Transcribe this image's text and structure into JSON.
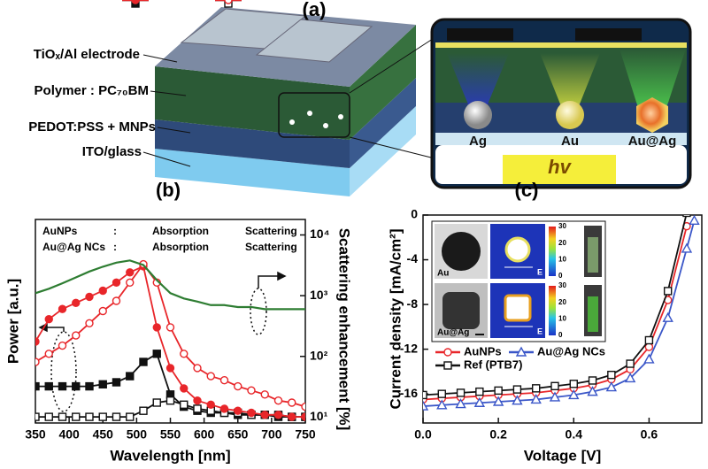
{
  "panel_labels": [
    "(a)",
    "(b)",
    "(c)"
  ],
  "device": {
    "layers": [
      "TiOₓ/Al electrode",
      "Polymer : PC₇₀BM",
      "PEDOT:PSS + MNPs",
      "ITO/glass"
    ],
    "particles": [
      "Ag",
      "Au",
      "Au@Ag"
    ],
    "light": "hv"
  },
  "chart_data": [
    {
      "type": "line",
      "xlabel": "Wavelength [nm]",
      "ylabel": "Power [a.u.]",
      "y2label": "Scattering enhancement [%]",
      "xlim": [
        350,
        750
      ],
      "xticks": [
        350,
        400,
        450,
        500,
        550,
        600,
        650,
        700,
        750
      ],
      "ylim": [
        0,
        1
      ],
      "y2lim": [
        8,
        18000
      ],
      "y2log": true,
      "y2ticks": [
        {
          "value": 10,
          "label": "10¹"
        },
        {
          "value": 100,
          "label": "10²"
        },
        {
          "value": 1000,
          "label": "10³"
        },
        {
          "value": 10000,
          "label": "10⁴"
        }
      ],
      "legend_groups": [
        "AuNPs",
        "Au@Ag NCs"
      ],
      "legend_separator": ":",
      "x": [
        350,
        370,
        390,
        410,
        430,
        450,
        470,
        490,
        510,
        530,
        550,
        570,
        590,
        610,
        630,
        650,
        670,
        690,
        710,
        730,
        750
      ],
      "series": [
        {
          "name": "Absorption",
          "color": "#111111",
          "marker": "square",
          "filled": true,
          "values": [
            0.18,
            0.18,
            0.18,
            0.18,
            0.18,
            0.19,
            0.2,
            0.23,
            0.3,
            0.34,
            0.14,
            0.08,
            0.06,
            0.05,
            0.05,
            0.04,
            0.04,
            0.04,
            0.03,
            0.03,
            0.03
          ]
        },
        {
          "name": "Scattering",
          "color": "#111111",
          "marker": "square",
          "filled": false,
          "values": [
            0.03,
            0.03,
            0.03,
            0.03,
            0.03,
            0.03,
            0.03,
            0.03,
            0.06,
            0.1,
            0.11,
            0.09,
            0.07,
            0.06,
            0.05,
            0.05,
            0.04,
            0.04,
            0.04,
            0.03,
            0.03
          ]
        },
        {
          "name": "Absorption",
          "color": "#e8262a",
          "marker": "circle",
          "filled": true,
          "values": [
            0.4,
            0.51,
            0.56,
            0.59,
            0.62,
            0.65,
            0.69,
            0.74,
            0.77,
            0.47,
            0.27,
            0.17,
            0.11,
            0.09,
            0.07,
            0.06,
            0.05,
            0.04,
            0.04,
            0.03,
            0.03
          ]
        },
        {
          "name": "Scattering",
          "color": "#e8262a",
          "marker": "circle",
          "filled": false,
          "values": [
            0.3,
            0.34,
            0.38,
            0.43,
            0.49,
            0.55,
            0.6,
            0.69,
            0.78,
            0.69,
            0.47,
            0.34,
            0.27,
            0.23,
            0.21,
            0.18,
            0.16,
            0.14,
            0.11,
            0.1,
            0.08
          ]
        },
        {
          "color": "#2e7d32",
          "axis": "y2",
          "marker": null,
          "values": [
            1100,
            1300,
            1600,
            2000,
            2500,
            3000,
            3500,
            3800,
            3200,
            1800,
            1100,
            900,
            800,
            700,
            700,
            650,
            650,
            600,
            600,
            600,
            600
          ]
        }
      ]
    },
    {
      "type": "line",
      "xlabel": "Voltage [V]",
      "ylabel": "Current density [mA/cm²]",
      "xlim": [
        0,
        0.74
      ],
      "xticks": [
        {
          "value": 0,
          "label": "0.0"
        },
        0.2,
        0.4,
        0.6
      ],
      "ylim": [
        -18.6,
        0
      ],
      "yticks": [
        0,
        -4,
        -8,
        -12,
        -16
      ],
      "x": [
        0,
        0.05,
        0.1,
        0.15,
        0.2,
        0.25,
        0.3,
        0.35,
        0.4,
        0.45,
        0.5,
        0.55,
        0.6,
        0.65,
        0.7,
        0.72
      ],
      "series": [
        {
          "name": "AuNPs",
          "color": "#e8262a",
          "marker": "circle",
          "filled": false,
          "values": [
            -16.5,
            -16.4,
            -16.3,
            -16.2,
            -16.1,
            -16.0,
            -15.9,
            -15.7,
            -15.5,
            -15.2,
            -14.7,
            -13.8,
            -11.8,
            -7.6,
            -1.0,
            null
          ]
        },
        {
          "name": "Au@Ag NCs",
          "color": "#3a56c8",
          "marker": "triangle",
          "filled": false,
          "values": [
            -17.1,
            -17.0,
            -16.9,
            -16.8,
            -16.7,
            -16.6,
            -16.5,
            -16.3,
            -16.1,
            -15.8,
            -15.4,
            -14.6,
            -12.9,
            -9.2,
            -3.0,
            -0.5
          ]
        },
        {
          "name": "Ref (PTB7)",
          "color": "#111111",
          "marker": "square",
          "filled": false,
          "values": [
            -16.1,
            -16.0,
            -15.9,
            -15.8,
            -15.7,
            -15.6,
            -15.5,
            -15.3,
            -15.1,
            -14.8,
            -14.3,
            -13.3,
            -11.2,
            -6.8,
            0.2,
            null
          ]
        }
      ],
      "inset": {
        "labels": [
          "Au",
          "Au@Ag"
        ],
        "field_label": "E",
        "colorbar_ticks": [
          30,
          20,
          10,
          0
        ]
      }
    }
  ]
}
